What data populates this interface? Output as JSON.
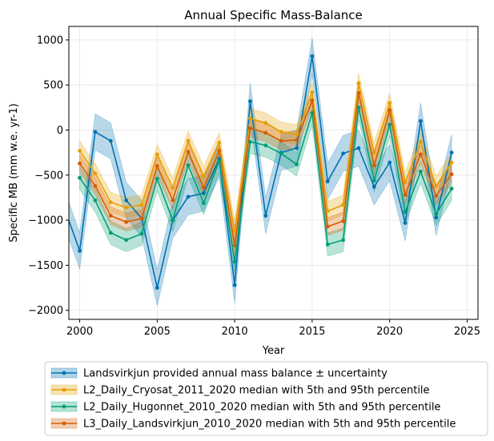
{
  "chart_data": {
    "type": "line",
    "title": "Annual Specific Mass-Balance",
    "xlabel": "Year",
    "ylabel": "Specific MB (mm w.e. yr-1)",
    "xlim": [
      1999.3,
      2025.7
    ],
    "ylim": [
      -2100,
      1150
    ],
    "xticks": [
      2000,
      2005,
      2010,
      2015,
      2020,
      2025
    ],
    "yticks": [
      -2000,
      -1500,
      -1000,
      -500,
      0,
      500,
      1000
    ],
    "xtick_labels": [
      "2000",
      "2005",
      "2010",
      "2015",
      "2020",
      "2025"
    ],
    "ytick_labels": [
      "−2000",
      "−1500",
      "−1000",
      "−500",
      "0",
      "500",
      "1000"
    ],
    "grid": true,
    "legend_position": "below",
    "series": [
      {
        "name": "Landsvirkjun provided annual mass balance ± uncertainty",
        "color": "#0072B2",
        "x": [
          1999,
          2000,
          2001,
          2002,
          2003,
          2004,
          2005,
          2006,
          2007,
          2008,
          2009,
          2010,
          2011,
          2012,
          2013,
          2014,
          2015,
          2016,
          2017,
          2018,
          2019,
          2020,
          2021,
          2022,
          2023,
          2024
        ],
        "y": [
          -860,
          -1340,
          -20,
          -120,
          -780,
          -980,
          -1750,
          -1000,
          -740,
          -700,
          -320,
          -1720,
          320,
          -950,
          -250,
          -200,
          820,
          -570,
          -260,
          -200,
          -630,
          -360,
          -1030,
          100,
          -970,
          -250
        ],
        "lower": [
          -1060,
          -1540,
          -220,
          -320,
          -980,
          -1180,
          -1950,
          -1200,
          -940,
          -900,
          -520,
          -1920,
          120,
          -1150,
          -450,
          -400,
          620,
          -770,
          -460,
          -400,
          -830,
          -560,
          -1230,
          -100,
          -1170,
          -450
        ],
        "upper": [
          -660,
          -1140,
          180,
          80,
          -580,
          -780,
          -1550,
          -800,
          -540,
          -500,
          -120,
          -1520,
          520,
          -750,
          -50,
          0,
          1020,
          -370,
          -60,
          0,
          -430,
          -160,
          -830,
          300,
          -770,
          -50
        ]
      },
      {
        "name": "L2_Daily_Cryosat_2011_2020 median with 5th and 95th percentile",
        "color": "#E69F00",
        "x": [
          2000,
          2001,
          2002,
          2003,
          2004,
          2005,
          2006,
          2007,
          2008,
          2009,
          2010,
          2011,
          2012,
          2013,
          2014,
          2015,
          2016,
          2017,
          2018,
          2019,
          2020,
          2021,
          2022,
          2023,
          2024
        ],
        "y": [
          -230,
          -480,
          -800,
          -860,
          -830,
          -270,
          -640,
          -120,
          -510,
          -140,
          -1120,
          130,
          80,
          -20,
          -50,
          420,
          -900,
          -830,
          520,
          -250,
          300,
          -580,
          -130,
          -620,
          -360
        ],
        "lower": [
          -340,
          -590,
          -910,
          -970,
          -940,
          -380,
          -750,
          -230,
          -620,
          -250,
          -1230,
          20,
          -30,
          -130,
          -160,
          310,
          -1010,
          -940,
          410,
          -360,
          190,
          -690,
          -240,
          -730,
          -470
        ],
        "upper": [
          -120,
          -370,
          -690,
          -750,
          -720,
          -160,
          -530,
          -10,
          -400,
          -30,
          -1010,
          240,
          190,
          90,
          60,
          530,
          -790,
          -720,
          630,
          -140,
          410,
          -470,
          -20,
          -510,
          -250
        ]
      },
      {
        "name": "L2_Daily_Hugonnet_2010_2020 median with 5th and 95th percentile",
        "color": "#009E73",
        "x": [
          2000,
          2001,
          2002,
          2003,
          2004,
          2005,
          2006,
          2007,
          2008,
          2009,
          2010,
          2011,
          2012,
          2013,
          2014,
          2015,
          2016,
          2017,
          2018,
          2019,
          2020,
          2021,
          2022,
          2023,
          2024
        ],
        "y": [
          -530,
          -780,
          -1140,
          -1220,
          -1150,
          -540,
          -1000,
          -390,
          -810,
          -340,
          -1460,
          -130,
          -170,
          -260,
          -380,
          190,
          -1270,
          -1220,
          250,
          -560,
          60,
          -910,
          -460,
          -930,
          -650
        ],
        "lower": [
          -660,
          -910,
          -1270,
          -1350,
          -1280,
          -670,
          -1130,
          -520,
          -940,
          -470,
          -1590,
          -260,
          -300,
          -390,
          -510,
          60,
          -1400,
          -1350,
          120,
          -690,
          -70,
          -1040,
          -590,
          -1060,
          -780
        ],
        "upper": [
          -400,
          -650,
          -1010,
          -1090,
          -1020,
          -410,
          -870,
          -260,
          -680,
          -210,
          -1330,
          0,
          -40,
          -130,
          -250,
          320,
          -1140,
          -1090,
          380,
          -430,
          190,
          -780,
          -330,
          -800,
          -520
        ]
      },
      {
        "name": "L3_Daily_Landsvirkjun_2010_2020 median with 5th and 95th percentile",
        "color": "#D55E00",
        "x": [
          2000,
          2001,
          2002,
          2003,
          2004,
          2005,
          2006,
          2007,
          2008,
          2009,
          2010,
          2011,
          2012,
          2013,
          2014,
          2015,
          2016,
          2017,
          2018,
          2019,
          2020,
          2021,
          2022,
          2023,
          2024
        ],
        "y": [
          -370,
          -620,
          -950,
          -1020,
          -980,
          -400,
          -780,
          -240,
          -640,
          -230,
          -1280,
          20,
          -30,
          -120,
          -110,
          330,
          -1070,
          -1010,
          410,
          -390,
          220,
          -720,
          -270,
          -730,
          -490
        ],
        "lower": [
          -470,
          -720,
          -1050,
          -1120,
          -1080,
          -500,
          -880,
          -340,
          -740,
          -330,
          -1380,
          -80,
          -130,
          -220,
          -210,
          230,
          -1170,
          -1110,
          310,
          -490,
          120,
          -820,
          -370,
          -830,
          -590
        ],
        "upper": [
          -270,
          -520,
          -850,
          -920,
          -880,
          -300,
          -680,
          -140,
          -540,
          -130,
          -1180,
          120,
          70,
          -20,
          -10,
          430,
          -970,
          -910,
          510,
          -290,
          320,
          -620,
          -170,
          -630,
          -390
        ]
      }
    ]
  }
}
